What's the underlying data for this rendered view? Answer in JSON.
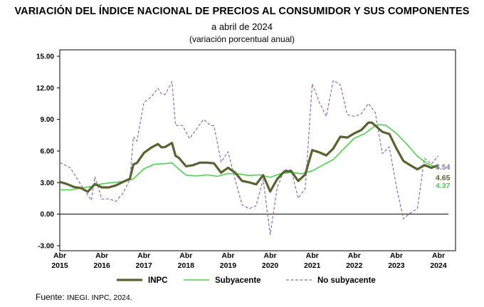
{
  "header": {
    "title": "VARIACIÓN DEL ÍNDICE NACIONAL DE PRECIOS AL CONSUMIDOR Y SUS COMPONENTES",
    "subtitle": "a abril de 2024",
    "unit": "(variación porcentual anual)"
  },
  "footer": {
    "source_label": "Fuente: ",
    "source_text": "INEGI. INPC, 2024."
  },
  "colors": {
    "inpc": "#5a6330",
    "subyacente": "#4cd24a",
    "no_subyacente": "#8a6fb8"
  },
  "chart_data": {
    "type": "line",
    "ylim": [
      -3,
      15
    ],
    "yticks": [
      "15.00",
      "12.00",
      "9.00",
      "6.00",
      "3.00",
      "0.00",
      "-3.00"
    ],
    "ytick_values": [
      15,
      12,
      9,
      6,
      3,
      0,
      -3
    ],
    "x_months": [
      "2015-04",
      "2024-04"
    ],
    "xticks": [
      {
        "month": "Abr",
        "year": "2015"
      },
      {
        "month": "Abr",
        "year": "2016"
      },
      {
        "month": "Abr",
        "year": "2017"
      },
      {
        "month": "Abr",
        "year": "2018"
      },
      {
        "month": "Abr",
        "year": "2019"
      },
      {
        "month": "Abr",
        "year": "2020"
      },
      {
        "month": "Abr",
        "year": "2021"
      },
      {
        "month": "Abr",
        "year": "2022"
      },
      {
        "month": "Abr",
        "year": "2023"
      },
      {
        "month": "Abr",
        "year": "2024"
      }
    ],
    "grid": false,
    "legend_position": "bottom",
    "end_labels": [
      {
        "series": "No subyacente",
        "text": "5.54"
      },
      {
        "series": "INPC",
        "text": "4.65"
      },
      {
        "series": "Subyacente",
        "text": "4.37"
      }
    ],
    "series": [
      {
        "name": "INPC",
        "style": "solid-thick",
        "points": [
          [
            "2015-04",
            3.06
          ],
          [
            "2015-06",
            2.87
          ],
          [
            "2015-08",
            2.59
          ],
          [
            "2015-10",
            2.48
          ],
          [
            "2015-12",
            2.13
          ],
          [
            "2016-02",
            2.87
          ],
          [
            "2016-04",
            2.54
          ],
          [
            "2016-06",
            2.54
          ],
          [
            "2016-08",
            2.73
          ],
          [
            "2016-10",
            3.06
          ],
          [
            "2016-12",
            3.36
          ],
          [
            "2017-01",
            4.72
          ],
          [
            "2017-02",
            4.86
          ],
          [
            "2017-04",
            5.82
          ],
          [
            "2017-06",
            6.31
          ],
          [
            "2017-08",
            6.66
          ],
          [
            "2017-09",
            6.35
          ],
          [
            "2017-10",
            6.37
          ],
          [
            "2017-12",
            6.77
          ],
          [
            "2018-01",
            5.55
          ],
          [
            "2018-02",
            5.34
          ],
          [
            "2018-04",
            4.55
          ],
          [
            "2018-06",
            4.65
          ],
          [
            "2018-08",
            4.9
          ],
          [
            "2018-10",
            4.9
          ],
          [
            "2018-12",
            4.83
          ],
          [
            "2019-02",
            3.94
          ],
          [
            "2019-04",
            4.41
          ],
          [
            "2019-06",
            3.95
          ],
          [
            "2019-08",
            3.16
          ],
          [
            "2019-10",
            3.02
          ],
          [
            "2019-12",
            2.83
          ],
          [
            "2020-02",
            3.7
          ],
          [
            "2020-04",
            2.15
          ],
          [
            "2020-06",
            3.33
          ],
          [
            "2020-08",
            4.05
          ],
          [
            "2020-10",
            4.09
          ],
          [
            "2020-12",
            3.15
          ],
          [
            "2021-02",
            3.76
          ],
          [
            "2021-04",
            6.08
          ],
          [
            "2021-06",
            5.88
          ],
          [
            "2021-08",
            5.59
          ],
          [
            "2021-10",
            6.24
          ],
          [
            "2021-12",
            7.36
          ],
          [
            "2022-02",
            7.28
          ],
          [
            "2022-04",
            7.68
          ],
          [
            "2022-06",
            7.99
          ],
          [
            "2022-08",
            8.7
          ],
          [
            "2022-09",
            8.7
          ],
          [
            "2022-10",
            8.41
          ],
          [
            "2022-12",
            7.82
          ],
          [
            "2023-02",
            7.62
          ],
          [
            "2023-04",
            6.25
          ],
          [
            "2023-06",
            5.06
          ],
          [
            "2023-08",
            4.64
          ],
          [
            "2023-10",
            4.26
          ],
          [
            "2023-12",
            4.66
          ],
          [
            "2024-02",
            4.4
          ],
          [
            "2024-04",
            4.65
          ]
        ]
      },
      {
        "name": "Subyacente",
        "style": "solid",
        "points": [
          [
            "2015-04",
            2.31
          ],
          [
            "2015-07",
            2.31
          ],
          [
            "2015-10",
            2.47
          ],
          [
            "2016-01",
            2.64
          ],
          [
            "2016-04",
            2.88
          ],
          [
            "2016-07",
            3.0
          ],
          [
            "2016-10",
            3.1
          ],
          [
            "2017-01",
            3.35
          ],
          [
            "2017-04",
            4.31
          ],
          [
            "2017-07",
            4.75
          ],
          [
            "2017-10",
            4.8
          ],
          [
            "2017-12",
            4.87
          ],
          [
            "2018-02",
            4.27
          ],
          [
            "2018-04",
            3.71
          ],
          [
            "2018-07",
            3.63
          ],
          [
            "2018-10",
            3.73
          ],
          [
            "2019-01",
            3.6
          ],
          [
            "2019-04",
            3.87
          ],
          [
            "2019-07",
            3.82
          ],
          [
            "2019-10",
            3.68
          ],
          [
            "2020-01",
            3.73
          ],
          [
            "2020-04",
            3.5
          ],
          [
            "2020-07",
            3.85
          ],
          [
            "2020-10",
            3.98
          ],
          [
            "2021-01",
            3.84
          ],
          [
            "2021-04",
            4.12
          ],
          [
            "2021-07",
            4.66
          ],
          [
            "2021-10",
            5.19
          ],
          [
            "2022-01",
            6.21
          ],
          [
            "2022-04",
            7.22
          ],
          [
            "2022-07",
            7.65
          ],
          [
            "2022-10",
            8.42
          ],
          [
            "2022-11",
            8.51
          ],
          [
            "2023-01",
            8.45
          ],
          [
            "2023-04",
            7.67
          ],
          [
            "2023-07",
            6.64
          ],
          [
            "2023-10",
            5.5
          ],
          [
            "2024-01",
            4.76
          ],
          [
            "2024-04",
            4.37
          ]
        ]
      },
      {
        "name": "No subyacente",
        "style": "dashed",
        "points": [
          [
            "2015-04",
            4.91
          ],
          [
            "2015-07",
            4.4
          ],
          [
            "2015-10",
            2.8
          ],
          [
            "2016-01",
            1.32
          ],
          [
            "2016-02",
            3.55
          ],
          [
            "2016-04",
            1.43
          ],
          [
            "2016-06",
            1.45
          ],
          [
            "2016-08",
            1.23
          ],
          [
            "2016-10",
            1.97
          ],
          [
            "2016-12",
            3.32
          ],
          [
            "2017-01",
            7.33
          ],
          [
            "2017-02",
            6.93
          ],
          [
            "2017-04",
            10.61
          ],
          [
            "2017-06",
            11.11
          ],
          [
            "2017-08",
            11.95
          ],
          [
            "2017-09",
            11.43
          ],
          [
            "2017-10",
            11.35
          ],
          [
            "2017-12",
            12.59
          ],
          [
            "2018-01",
            8.44
          ],
          [
            "2018-03",
            8.43
          ],
          [
            "2018-05",
            7.18
          ],
          [
            "2018-07",
            8.09
          ],
          [
            "2018-09",
            9.01
          ],
          [
            "2018-11",
            8.42
          ],
          [
            "2018-12",
            8.4
          ],
          [
            "2019-02",
            4.95
          ],
          [
            "2019-04",
            5.94
          ],
          [
            "2019-06",
            3.31
          ],
          [
            "2019-08",
            0.88
          ],
          [
            "2019-10",
            0.52
          ],
          [
            "2019-12",
            0.8
          ],
          [
            "2020-02",
            3.31
          ],
          [
            "2020-04",
            -1.96
          ],
          [
            "2020-06",
            2.51
          ],
          [
            "2020-08",
            4.19
          ],
          [
            "2020-10",
            4.2
          ],
          [
            "2020-12",
            1.51
          ],
          [
            "2021-02",
            2.45
          ],
          [
            "2021-04",
            12.38
          ],
          [
            "2021-06",
            10.66
          ],
          [
            "2021-08",
            9.28
          ],
          [
            "2021-10",
            12.7
          ],
          [
            "2021-12",
            12.29
          ],
          [
            "2022-02",
            9.46
          ],
          [
            "2022-04",
            9.29
          ],
          [
            "2022-06",
            9.53
          ],
          [
            "2022-08",
            10.51
          ],
          [
            "2022-10",
            9.63
          ],
          [
            "2022-12",
            5.75
          ],
          [
            "2023-02",
            6.4
          ],
          [
            "2023-04",
            2.63
          ],
          [
            "2023-06",
            -0.44
          ],
          [
            "2023-08",
            0.12
          ],
          [
            "2023-10",
            0.51
          ],
          [
            "2023-12",
            5.31
          ],
          [
            "2024-02",
            4.76
          ],
          [
            "2024-04",
            5.54
          ]
        ]
      }
    ]
  }
}
